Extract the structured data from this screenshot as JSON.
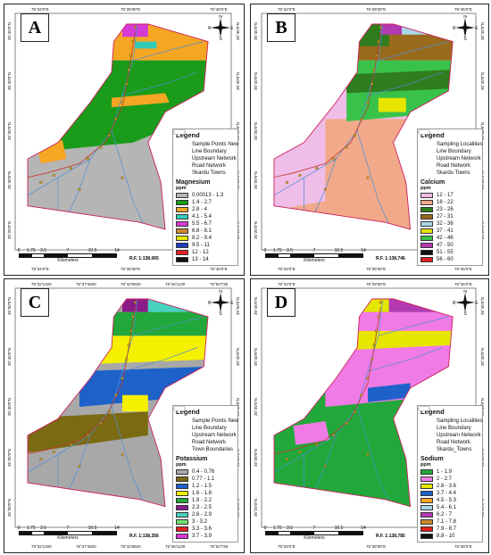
{
  "panels": [
    {
      "letter": "A",
      "top_coords": [
        "75°34'0\"E",
        "75°39'30\"E",
        "75°45'0\"E"
      ],
      "bottom_coords": [
        "75°34'0\"E",
        "75°39'30\"E",
        "75°45'0\"E"
      ],
      "left_coords": [
        "35°45'0\"N",
        "35°40'0\"N",
        "35°35'0\"N",
        "35°30'0\"N",
        "35°25'0\"N"
      ],
      "right_coords": [
        "35°45'0\"N",
        "35°40'0\"N",
        "35°35'0\"N",
        "35°30'0\"N",
        "35°25'0\"N"
      ],
      "legend_title": "Legend",
      "legend_items": [
        "Sample Points New",
        "Line Boundary",
        "Upstream Network",
        "Road Network",
        "Skardu Towns"
      ],
      "param_title": "Magnesium",
      "unit": "ppm",
      "classes": [
        {
          "label": "0.00013 - 1.3",
          "color": "#b5b5b5"
        },
        {
          "label": "1.4 - 2.7",
          "color": "#1a9c1a"
        },
        {
          "label": "2.8 - 4",
          "color": "#f5a623"
        },
        {
          "label": "4.1 - 5.4",
          "color": "#33ccbb"
        },
        {
          "label": "5.5 - 6.7",
          "color": "#d63ad6"
        },
        {
          "label": "6.8 - 8.1",
          "color": "#c98a2e"
        },
        {
          "label": "8.2 - 9.4",
          "color": "#e6e600"
        },
        {
          "label": "9.5 - 11",
          "color": "#1f3fbf"
        },
        {
          "label": "12 - 12",
          "color": "#e02020"
        },
        {
          "label": "13 - 14",
          "color": "#111111"
        }
      ],
      "scale_ticks": [
        "0",
        "1.75",
        "3.5",
        "7",
        "10.5",
        "14"
      ],
      "scale_unit": "Kilometers",
      "rf": "R.F. 1:138,065"
    },
    {
      "letter": "B",
      "top_coords": [
        "75°34'0\"E",
        "75°39'30\"E",
        "75°45'0\"E"
      ],
      "bottom_coords": [
        "75°34'0\"E",
        "75°39'30\"E",
        "75°45'0\"E"
      ],
      "left_coords": [
        "35°45'0\"N",
        "35°40'0\"N",
        "35°35'0\"N",
        "35°30'0\"N",
        "35°25'0\"N"
      ],
      "right_coords": [
        "35°45'0\"N",
        "35°40'0\"N",
        "35°35'0\"N",
        "35°30'0\"N",
        "35°25'0\"N"
      ],
      "legend_title": "Legend",
      "legend_items": [
        "Sampling Localities",
        "Line Boundary",
        "Upstream Network",
        "Road Network",
        "Skardu Towns"
      ],
      "param_title": "Calcium",
      "unit": "ppm",
      "classes": [
        {
          "label": "12 - 17",
          "color": "#efbde8"
        },
        {
          "label": "18 - 22",
          "color": "#f2a98a"
        },
        {
          "label": "23 - 26",
          "color": "#2e7d1e"
        },
        {
          "label": "27 - 31",
          "color": "#9a6a1c"
        },
        {
          "label": "32 - 36",
          "color": "#a9d8ea"
        },
        {
          "label": "37 - 41",
          "color": "#e6e600"
        },
        {
          "label": "42 - 46",
          "color": "#39c24a"
        },
        {
          "label": "47 - 50",
          "color": "#b33ab3"
        },
        {
          "label": "51 - 55",
          "color": "#111111"
        },
        {
          "label": "56 - 60",
          "color": "#e02020"
        }
      ],
      "scale_ticks": [
        "0",
        "1.75",
        "3.5",
        "7",
        "10.5",
        "14"
      ],
      "scale_unit": "Kilometers",
      "rf": "R.F. 1:138,746"
    },
    {
      "letter": "C",
      "top_coords": [
        "75°32'1320",
        "75°37'4620",
        "75°42'6620",
        "75°46'1130",
        "75°52'735"
      ],
      "bottom_coords": [
        "75°32'1320",
        "75°37'4620",
        "75°42'6620",
        "75°46'1130",
        "75°52'735"
      ],
      "left_coords": [
        "35°50'0\"N",
        "35°45'0\"N",
        "35°40'0\"N",
        "35°35'0\"N",
        "35°30'0\"N"
      ],
      "right_coords": [
        "35°50'0\"N",
        "35°45'0\"N",
        "35°40'0\"N",
        "35°35'0\"N",
        "35°30'0\"N"
      ],
      "legend_title": "Legend",
      "legend_items": [
        "Sample Points New",
        "Line Boundary",
        "Upstream Network",
        "Road Network",
        "Town Boundaries"
      ],
      "param_title": "Potassium",
      "unit": "ppm",
      "classes": [
        {
          "label": "0.4 - 0.76",
          "color": "#a8a8a8"
        },
        {
          "label": "0.77 - 1.1",
          "color": "#7a6a12"
        },
        {
          "label": "1.2 - 1.5",
          "color": "#1e62c9"
        },
        {
          "label": "1.6 - 1.8",
          "color": "#f5f000"
        },
        {
          "label": "1.9 - 2.2",
          "color": "#22a83a"
        },
        {
          "label": "2.3 - 2.5",
          "color": "#8a1c8a"
        },
        {
          "label": "2.6 - 2.9",
          "color": "#47d1c0"
        },
        {
          "label": "3 - 3.2",
          "color": "#6fe06f"
        },
        {
          "label": "3.3 - 3.6",
          "color": "#e02020"
        },
        {
          "label": "3.7 - 3.9",
          "color": "#d63ad6"
        }
      ],
      "scale_ticks": [
        "0",
        "1.75",
        "3.5",
        "7",
        "10.5",
        "14"
      ],
      "scale_unit": "Kilometers",
      "rf": "R.F. 1:138,356"
    },
    {
      "letter": "D",
      "top_coords": [
        "75°34'0\"E",
        "75°39'30\"E",
        "75°45'0\"E"
      ],
      "bottom_coords": [
        "75°34'0\"E",
        "75°39'30\"E",
        "75°45'0\"E"
      ],
      "left_coords": [
        "35°45'0\"N",
        "35°40'0\"N",
        "35°35'0\"N",
        "35°30'0\"N",
        "35°25'0\"N"
      ],
      "right_coords": [
        "35°45'0\"N",
        "35°40'0\"N",
        "35°35'0\"N",
        "35°30'0\"N",
        "35°25'0\"N"
      ],
      "legend_title": "Legend",
      "legend_items": [
        "Sampling Localities",
        "Line Boundary",
        "Upstream Network",
        "Road Network",
        "Skardu_Towns"
      ],
      "param_title": "Sodium",
      "unit": "ppm",
      "classes": [
        {
          "label": "1 - 1.9",
          "color": "#22a83a"
        },
        {
          "label": "2 - 2.7",
          "color": "#f07be6"
        },
        {
          "label": "2.8 - 3.6",
          "color": "#e6e600"
        },
        {
          "label": "3.7 - 4.4",
          "color": "#1e62c9"
        },
        {
          "label": "4.5 - 5.3",
          "color": "#f5a623"
        },
        {
          "label": "5.4 - 6.1",
          "color": "#a9d8ea"
        },
        {
          "label": "6.2 - 7",
          "color": "#b33ab3"
        },
        {
          "label": "7.1 - 7.8",
          "color": "#c98a2e"
        },
        {
          "label": "7.9 - 8.7",
          "color": "#e02020"
        },
        {
          "label": "8.8 - 10",
          "color": "#111111"
        }
      ],
      "scale_ticks": [
        "0",
        "1.75",
        "3.5",
        "7",
        "10.5",
        "14"
      ],
      "scale_unit": "Kilometers",
      "rf": "R.F. 1:138,785"
    }
  ],
  "compass": {
    "n": "N",
    "s": "S",
    "e": "E",
    "w": "W"
  },
  "colors": {
    "boundary": "#cc1f5a",
    "stream": "#4a8fd6",
    "road": "#9b59b6",
    "sample_point": "#d4a017"
  }
}
